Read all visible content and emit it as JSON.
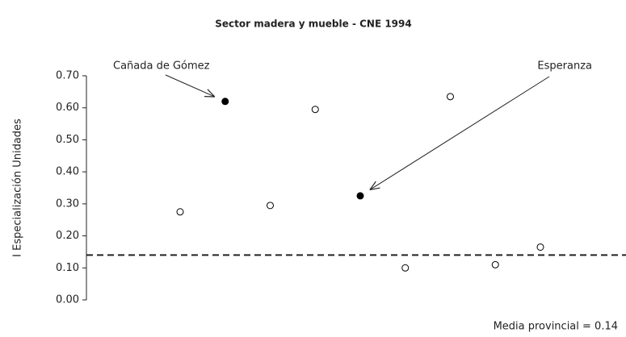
{
  "chart_data": {
    "type": "scatter",
    "title": "Sector madera y mueble - CNE 1994",
    "y_label": "I Especialización Unidades",
    "categories": [
      null,
      null,
      null,
      null,
      null,
      null,
      null,
      null,
      null
    ],
    "values": [
      0.275,
      0.62,
      0.295,
      0.595,
      0.325,
      0.1,
      0.635,
      0.11,
      0.165
    ],
    "colors": [
      "#ffffff",
      "#000000",
      "#ffffff",
      "#ffffff",
      "#000000",
      "#ffffff",
      "#ffffff",
      "#ffffff",
      "#ffffff"
    ],
    "ylim": [
      0,
      0.7
    ],
    "yticks": [
      {
        "value": 0,
        "label": "0.00"
      },
      {
        "value": 0.1,
        "label": "0.10"
      },
      {
        "value": 0.2,
        "label": "0.20"
      },
      {
        "value": 0.3,
        "label": "0.30"
      },
      {
        "value": 0.4,
        "label": "0.40"
      },
      {
        "value": 0.5,
        "label": "0.50"
      },
      {
        "value": 0.6,
        "label": "0.60"
      },
      {
        "value": 0.7,
        "label": "0.70"
      }
    ],
    "reference_line": {
      "value": 0.14,
      "label": "Media provincial = 0.14"
    },
    "annotations": [
      {
        "text": "Cañada de Gómez",
        "target": 1
      },
      {
        "text": "Esperanza",
        "target": 4
      }
    ]
  }
}
